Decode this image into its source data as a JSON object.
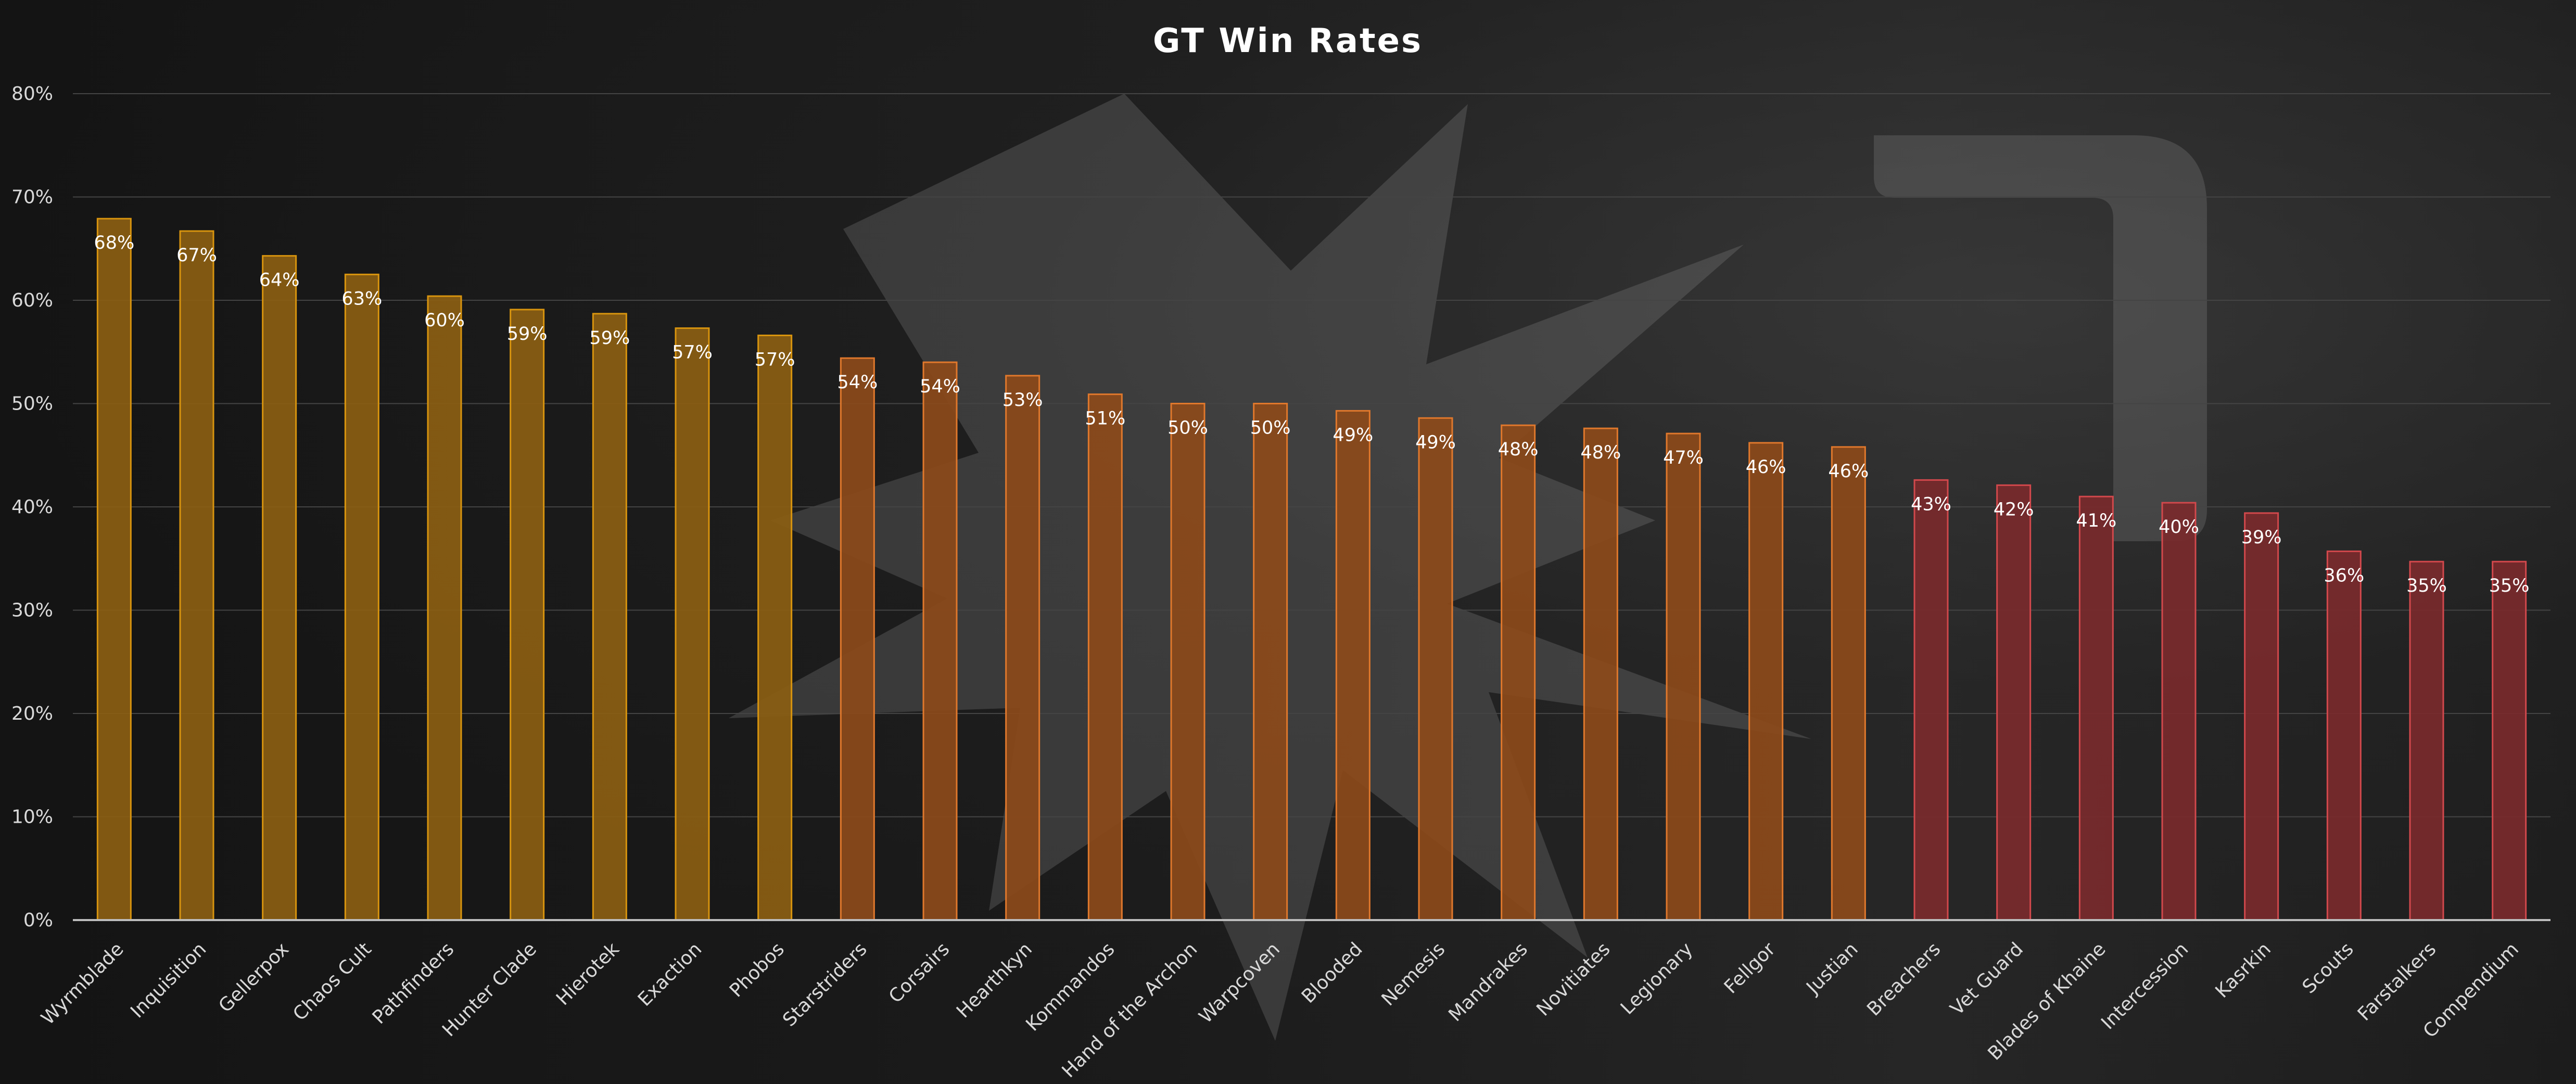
{
  "chart_data": {
    "type": "bar",
    "title": "GT Win Rates",
    "xlabel": "",
    "ylabel": "",
    "ylim": [
      0,
      80
    ],
    "ytick_values": [
      0,
      10,
      20,
      30,
      40,
      50,
      60,
      70,
      80
    ],
    "ytick_labels": [
      "0%",
      "10%",
      "20%",
      "30%",
      "40%",
      "50%",
      "60%",
      "70%",
      "80%"
    ],
    "grid": true,
    "legend": "none",
    "categories": [
      "Wyrmblade",
      "Inquisition",
      "Gellerpox",
      "Chaos Cult",
      "Pathfinders",
      "Hunter Clade",
      "Hierotek",
      "Exaction",
      "Phobos",
      "Starstriders",
      "Corsairs",
      "Hearthkyn",
      "Kommandos",
      "Hand of the Archon",
      "Warpcoven",
      "Blooded",
      "Nemesis",
      "Mandrakes",
      "Novitiates",
      "Legionary",
      "Fellgor",
      "Justian",
      "Breachers",
      "Vet Guard",
      "Blades of Khaine",
      "Intercession",
      "Kasrkin",
      "Scouts",
      "Farstalkers",
      "Compendium"
    ],
    "values": [
      67.9,
      66.7,
      64.3,
      62.5,
      60.4,
      59.1,
      58.7,
      57.3,
      56.6,
      54.4,
      54.0,
      52.7,
      50.9,
      50.0,
      50.0,
      49.3,
      48.6,
      47.9,
      47.6,
      47.1,
      46.2,
      45.8,
      42.6,
      42.1,
      41.0,
      40.4,
      39.4,
      35.7,
      34.7,
      34.7
    ],
    "labels": [
      "68%",
      "67%",
      "64%",
      "63%",
      "60%",
      "59%",
      "59%",
      "57%",
      "57%",
      "54%",
      "54%",
      "53%",
      "51%",
      "50%",
      "50%",
      "49%",
      "49%",
      "48%",
      "48%",
      "47%",
      "46%",
      "46%",
      "43%",
      "42%",
      "41%",
      "40%",
      "39%",
      "36%",
      "35%",
      "35%"
    ],
    "colors": {
      "tier_high": "#8b5e12",
      "tier_high_edge": "#d8940e",
      "tier_mid": "#8c4a1a",
      "tier_mid_edge": "#e0782c",
      "tier_low": "#7a2a2c",
      "tier_low_edge": "#d2484c"
    },
    "tiers": [
      "high",
      "high",
      "high",
      "high",
      "high",
      "high",
      "high",
      "high",
      "high",
      "mid",
      "mid",
      "mid",
      "mid",
      "mid",
      "mid",
      "mid",
      "mid",
      "mid",
      "mid",
      "mid",
      "mid",
      "mid",
      "low",
      "low",
      "low",
      "low",
      "low",
      "low",
      "low",
      "low"
    ]
  }
}
